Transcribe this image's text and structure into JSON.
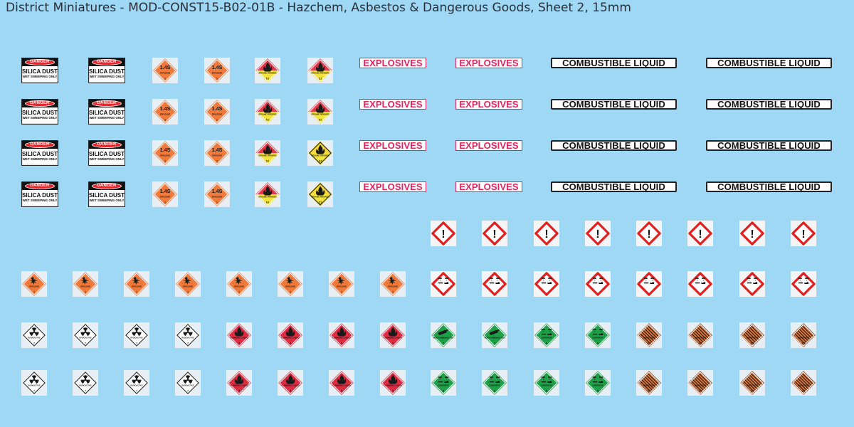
{
  "title": "District Miniatures - MOD-CONST15-B02-01B - Hazchem, Asbestos & Dangerous Goods, Sheet 2, 15mm",
  "danger_sign": {
    "header": "DANGER",
    "main": "SILICA DUST",
    "sub": "WET SWEEPING ONLY"
  },
  "strips": {
    "explosives": "EXPLOSIVES",
    "combustible": "COMBUSTIBLE LIQUID"
  },
  "placards": {
    "explosive_14s": {
      "code": "1.4S",
      "text": "EXPLOSIVE",
      "class": "1",
      "color": "#ef7a3c",
      "icon": "code-label"
    },
    "organic_peroxide_red": {
      "text": "ORGANIC PEROXIDE",
      "class": "5.2",
      "color_top": "#e23a4c",
      "color_bottom": "#f2e23c",
      "icon": "flame-icon"
    },
    "organic_peroxide_yellow": {
      "text": "ORGANIC PEROXIDE",
      "class": "5.2",
      "color_top": "#f6d93a",
      "color_bottom": "#f2e23c",
      "icon": "flame-icon"
    },
    "explosive": {
      "text": "EXPLOSIVE",
      "class": "1",
      "color": "#ef7a3c",
      "icon": "explosion-icon"
    },
    "radioactive": {
      "text": "RADIOACTIVE",
      "class": "7",
      "color": "#ffffff",
      "icon": "radiation-icon"
    },
    "flammable_liquid": {
      "text": "FLAMMABLE LIQUID",
      "class": "3",
      "color": "#dd2c42",
      "icon": "flame-icon"
    },
    "non_flammable_gas": {
      "text": "NON-FLAMMABLE GAS",
      "class": "2",
      "color": "#1ea048",
      "icon": "gas-cylinder-icon"
    },
    "corrosive_green": {
      "text": "CORROSIVE",
      "class": "8",
      "color": "#1ea048",
      "icon": "corrosion-icon"
    },
    "dangerous_when_wet": {
      "text": "DANGEROUS",
      "class": "4.3",
      "color": "#ef7a3c",
      "icon": "stripes"
    }
  },
  "ghs": {
    "exclamation": {
      "symbol": "!",
      "color": "#e02020",
      "icon": "exclamation-icon"
    },
    "corrosive": {
      "color": "#e02020",
      "icon": "corrosion-icon"
    }
  }
}
